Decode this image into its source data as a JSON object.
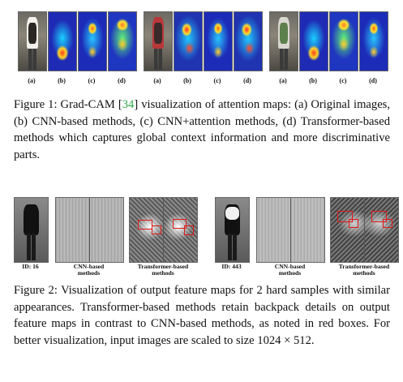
{
  "figure1": {
    "groups": [
      {
        "labels": [
          "(a)",
          "(b)",
          "(c)",
          "(d)"
        ]
      },
      {
        "labels": [
          "(a)",
          "(b)",
          "(c)",
          "(d)"
        ]
      },
      {
        "labels": [
          "(a)",
          "(b)",
          "(c)",
          "(d)"
        ]
      }
    ],
    "caption_prefix": "Figure 1:  Grad-CAM [",
    "caption_cite": "34",
    "caption_rest": "] visualization of attention maps: (a) Original images, (b) CNN-based methods, (c) CNN+attention methods, (d) Transformer-based methods which captures global context information and more discriminative parts."
  },
  "figure2": {
    "left": {
      "id_label": "ID: 16",
      "cnn_label": "CNN-based methods",
      "trans_label": "Transformer-based methods"
    },
    "right": {
      "id_label": "ID: 443",
      "cnn_label": "CNN-based methods",
      "trans_label": "Transformer-based methods"
    },
    "caption": "Figure 2: Visualization of output feature maps for 2 hard samples with similar appearances.  Transformer-based methods retain backpack details on output feature maps in contrast to CNN-based methods, as noted in red boxes.  For better visualization, input images are scaled to size 1024 × 512."
  },
  "colors": {
    "citation": "#2aa845",
    "highlight_box": "#e01818"
  }
}
